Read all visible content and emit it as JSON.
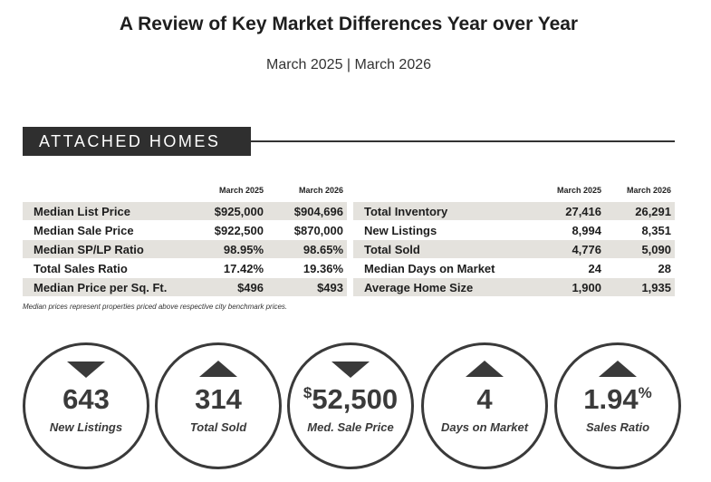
{
  "title": "A Review of Key Market Differences Year over Year",
  "subtitle": "March 2025 | March 2026",
  "section_label": "ATTACHED HOMES",
  "left_table": {
    "headers": [
      "March 2025",
      "March 2026"
    ],
    "rows": [
      {
        "label": "Median List Price",
        "v2025": "$925,000",
        "v2026": "$904,696"
      },
      {
        "label": "Median Sale Price",
        "v2025": "$922,500",
        "v2026": "$870,000"
      },
      {
        "label": "Median SP/LP Ratio",
        "v2025": "98.95%",
        "v2026": "98.65%"
      },
      {
        "label": "Total Sales Ratio",
        "v2025": "17.42%",
        "v2026": "19.36%"
      },
      {
        "label": "Median Price per Sq. Ft.",
        "v2025": "$496",
        "v2026": "$493"
      }
    ]
  },
  "right_table": {
    "headers": [
      "March 2025",
      "March 2026"
    ],
    "rows": [
      {
        "label": "Total Inventory",
        "v2025": "27,416",
        "v2026": "26,291"
      },
      {
        "label": "New Listings",
        "v2025": "8,994",
        "v2026": "8,351"
      },
      {
        "label": "Total Sold",
        "v2025": "4,776",
        "v2026": "5,090"
      },
      {
        "label": "Median Days on Market",
        "v2025": "24",
        "v2026": "28"
      },
      {
        "label": "Average Home Size",
        "v2025": "1,900",
        "v2026": "1,935"
      }
    ]
  },
  "footnote": "Median prices represent properties priced above respective city benchmark prices.",
  "highlights": [
    {
      "prefix": "",
      "value": "643",
      "suffix": "",
      "label": "New Listings",
      "direction": "down"
    },
    {
      "prefix": "",
      "value": "314",
      "suffix": "",
      "label": "Total Sold",
      "direction": "up"
    },
    {
      "prefix": "$",
      "value": "52,500",
      "suffix": "",
      "label": "Med. Sale Price",
      "direction": "down"
    },
    {
      "prefix": "",
      "value": "4",
      "suffix": "",
      "label": "Days on Market",
      "direction": "up"
    },
    {
      "prefix": "",
      "value": "1.94",
      "suffix": "%",
      "label": "Sales Ratio",
      "direction": "up"
    }
  ],
  "colors": {
    "header_bg": "#2f2f2f",
    "row_shade": "#e4e2dd",
    "circle": "#3a3a3a"
  }
}
